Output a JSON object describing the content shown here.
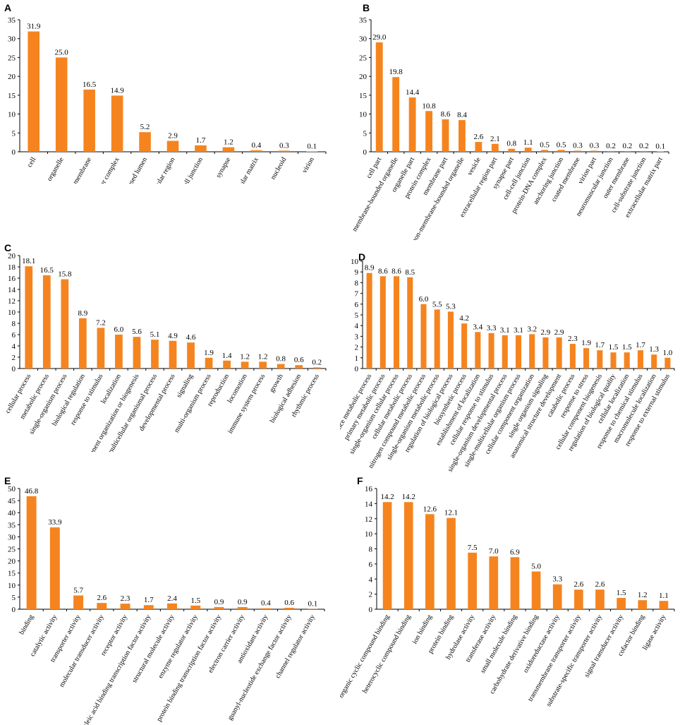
{
  "chart_data": [
    {
      "type": "bar",
      "panel": "A",
      "ylim": [
        0,
        35
      ],
      "ytick_step": 5,
      "categories": [
        "cell",
        "organelle",
        "membrane",
        "macromolecular complex",
        "membrane enclosed lumen",
        "extracellular region",
        "cell junction",
        "synapse",
        "extracellular matrix",
        "nucleoid",
        "virion"
      ],
      "values": [
        31.9,
        25.0,
        16.5,
        14.9,
        5.2,
        2.9,
        1.7,
        1.2,
        0.4,
        0.3,
        0.1
      ],
      "labels": [
        "31.9",
        "25.0",
        "16.5",
        "14.9",
        "5.2",
        "2.9",
        "1.7",
        "1.2",
        "0.4",
        "0.3",
        "0.1"
      ],
      "ytick_labels": [
        "0",
        "5",
        "10",
        "15",
        "20",
        "25",
        "30",
        "35"
      ]
    },
    {
      "type": "bar",
      "panel": "B",
      "ylim": [
        0,
        35
      ],
      "ytick_step": 5,
      "categories": [
        "cell part",
        "membrane-bounded organelle",
        "organelle part",
        "protein complex",
        "membrane part",
        "non-membrane-bounded organelle",
        "vesicle",
        "extracellular region part",
        "synapse part",
        "cell-cell junction",
        "protein-DNA complex",
        "anchoring junction",
        "coated membrane",
        "virion part",
        "neuromuscular junction",
        "outer membrane",
        "cell-substrate junction",
        "extracellular matrix part"
      ],
      "values": [
        29.0,
        19.8,
        14.4,
        10.8,
        8.6,
        8.4,
        2.6,
        2.1,
        0.8,
        1.1,
        0.5,
        0.5,
        0.3,
        0.3,
        0.2,
        0.2,
        0.2,
        0.1
      ],
      "labels": [
        "29.0",
        "19.8",
        "14.4",
        "10.8",
        "8.6",
        "8.4",
        "2.6",
        "2.1",
        "0.8",
        "1.1",
        "0.5",
        "0.5",
        "0.3",
        "0.3",
        "0.2",
        "0.2",
        "0.2",
        "0.1"
      ],
      "ytick_labels": [
        "0",
        "5",
        "10",
        "15",
        "20",
        "25",
        "30",
        "35"
      ]
    },
    {
      "type": "bar",
      "panel": "C",
      "ylim": [
        0,
        20
      ],
      "ytick_step": 2,
      "categories": [
        "cellular process",
        "metabolic process",
        "single-organism process",
        "biological regulation",
        "response to stimulus",
        "localization",
        "cellular component organization or biogenesis",
        "multicellular organismal process",
        "developmental process",
        "signaling",
        "multi-organism process",
        "reproduction",
        "locomotion",
        "immune system process",
        "growth",
        "biological adhesion",
        "rhythmic process"
      ],
      "values": [
        18.1,
        16.5,
        15.8,
        8.9,
        7.2,
        6.0,
        5.6,
        5.1,
        4.9,
        4.6,
        1.9,
        1.4,
        1.2,
        1.2,
        0.8,
        0.6,
        0.2
      ],
      "labels": [
        "18.1",
        "16.5",
        "15.8",
        "8.9",
        "7.2",
        "6.0",
        "5.6",
        "5.1",
        "4.9",
        "4.6",
        "1.9",
        "1.4",
        "1.2",
        "1.2",
        "0.8",
        "0.6",
        "0.2"
      ],
      "ytick_labels": [
        "0",
        "2",
        "4",
        "6",
        "8",
        "10",
        "12",
        "14",
        "16",
        "18",
        "20"
      ]
    },
    {
      "type": "bar",
      "panel": "D",
      "ylim": [
        0,
        10
      ],
      "ytick_step": 1,
      "categories": [
        "organic substance metabolic process",
        "primary metabolic process",
        "single-organism cellular process",
        "cellular metabolic process",
        "nitrogen compound metabolic process",
        "single-organism metabolic process",
        "regulation of biological process",
        "biosynthetic process",
        "establishment of localization",
        "cellular response to stimulus",
        "single-organism developmental process",
        "single-multicellular organism process",
        "cellular component organization",
        "single organism signaling",
        "anatomical structure development",
        "catabolic process",
        "response to stress",
        "cellular component biogenesis",
        "regulation of biological quality",
        "cellular localization",
        "response to chemical stimulus",
        "macromolecule localization",
        "response to external stimulus"
      ],
      "values": [
        8.9,
        8.6,
        8.6,
        8.5,
        6.0,
        5.5,
        5.3,
        4.2,
        3.4,
        3.3,
        3.1,
        3.1,
        3.2,
        2.9,
        2.9,
        2.3,
        1.9,
        1.7,
        1.5,
        1.5,
        1.7,
        1.3,
        1.0
      ],
      "labels": [
        "8.9",
        "8.6",
        "8.6",
        "8.5",
        "6.0",
        "5.5",
        "5.3",
        "4.2",
        "3.4",
        "3.3",
        "3.1",
        "3.1",
        "3.2",
        "2.9",
        "2.9",
        "2.3",
        "1.9",
        "1.7",
        "1.5",
        "1.5",
        "1.7",
        "1.3",
        "1.0"
      ],
      "ytick_labels": [
        "0",
        "1",
        "2",
        "3",
        "4",
        "5",
        "6",
        "7",
        "8",
        "9",
        "10"
      ]
    },
    {
      "type": "bar",
      "panel": "E",
      "ylim": [
        0,
        50
      ],
      "ytick_step": 5,
      "categories": [
        "binding",
        "catalytic activity",
        "transporter activity",
        "molecular transducer activity",
        "receptor activity",
        "nucleic acid binding transcription factor activity",
        "structural molecule activity",
        "enzyme regulator activity",
        "protein binding transcription factor activity",
        "electron carrier activity",
        "antioxidant activity",
        "guanyl-nucleotide exchange factor activity",
        "channel regulator activity"
      ],
      "values": [
        46.8,
        33.9,
        5.7,
        2.6,
        2.3,
        1.7,
        2.4,
        1.5,
        0.9,
        0.9,
        0.4,
        0.6,
        0.1
      ],
      "labels": [
        "46.8",
        "33.9",
        "5.7",
        "2.6",
        "2.3",
        "1.7",
        "2.4",
        "1.5",
        "0.9",
        "0.9",
        "0.4",
        "0.6",
        "0.1"
      ],
      "ytick_labels": [
        "0",
        "5",
        "10",
        "15",
        "20",
        "25",
        "30",
        "35",
        "40",
        "45",
        "50"
      ]
    },
    {
      "type": "bar",
      "panel": "F",
      "ylim": [
        0,
        16
      ],
      "ytick_step": 2,
      "categories": [
        "organic cyclic compound binding",
        "heterocyclic compound binding",
        "ion binding",
        "protein binding",
        "hydrolase activity",
        "transferase activity",
        "small molecule binding",
        "carbohydrate derivative binding",
        "oxidoreductase activity",
        "transmembrane transporter activity",
        "substrate-specific transporter activity",
        "signal transducer activity",
        "cofactor binding",
        "ligase activity"
      ],
      "values": [
        14.2,
        14.2,
        12.6,
        12.1,
        7.5,
        7.0,
        6.9,
        5.0,
        3.3,
        2.6,
        2.6,
        1.5,
        1.2,
        1.1
      ],
      "labels": [
        "14.2",
        "14.2",
        "12.6",
        "12.1",
        "7.5",
        "7.0",
        "6.9",
        "5.0",
        "3.3",
        "2.6",
        "2.6",
        "1.5",
        "1.2",
        "1.1"
      ],
      "ytick_labels": [
        "0",
        "2",
        "4",
        "6",
        "8",
        "10",
        "12",
        "14",
        "16"
      ]
    }
  ],
  "colors": {
    "bar": "#f5841f"
  }
}
